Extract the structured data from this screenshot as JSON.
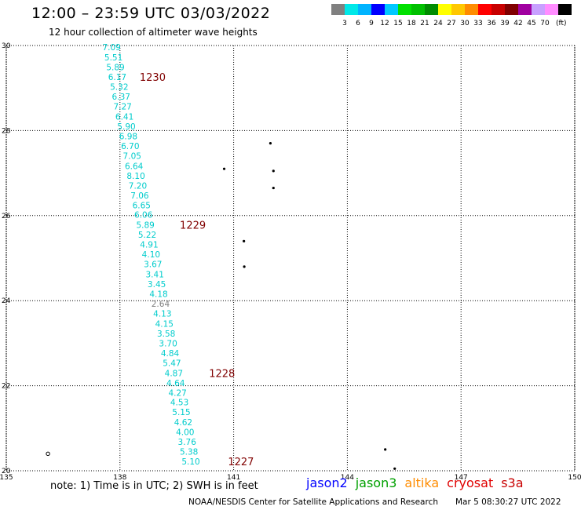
{
  "header": {
    "title": "12:00 – 23:59 UTC 03/03/2022",
    "subtitle": "12 hour collection of altimeter wave heights"
  },
  "color_scale": {
    "unit_label": "(ft)",
    "bins": [
      {
        "label": "",
        "color": "#808080"
      },
      {
        "label": "3",
        "color": "#00e8e8"
      },
      {
        "label": "6",
        "color": "#00b4ff"
      },
      {
        "label": "9",
        "color": "#0000ff"
      },
      {
        "label": "12",
        "color": "#00c8ff"
      },
      {
        "label": "15",
        "color": "#00e000"
      },
      {
        "label": "18",
        "color": "#00c000"
      },
      {
        "label": "21",
        "color": "#008c00"
      },
      {
        "label": "24",
        "color": "#ffff00"
      },
      {
        "label": "27",
        "color": "#ffc800"
      },
      {
        "label": "30",
        "color": "#ff8c00"
      },
      {
        "label": "33",
        "color": "#ff0000"
      },
      {
        "label": "36",
        "color": "#c80000"
      },
      {
        "label": "39",
        "color": "#800000"
      },
      {
        "label": "42",
        "color": "#a000a0"
      },
      {
        "label": "45",
        "color": "#c8a0ff"
      },
      {
        "label": "70",
        "color": "#ff8cff"
      },
      {
        "label": "",
        "color": "#000000"
      }
    ]
  },
  "notes": {
    "note": "note:  1) Time is in UTC;  2) SWH is in feet",
    "credit": "NOAA/NESDIS Center for Satellite Applications and Research",
    "timestamp": "Mar  5 08:30:27 UTC 2022"
  },
  "satellites": [
    {
      "name": "jason2",
      "color": "#0000ff"
    },
    {
      "name": "jason3",
      "color": "#00a000"
    },
    {
      "name": "altika",
      "color": "#ff8c00"
    },
    {
      "name": "cryosat",
      "color": "#e00000"
    },
    {
      "name": "s3a",
      "color": "#c80000"
    }
  ],
  "chart_data": {
    "type": "scatter",
    "title": "12:00 – 23:59 UTC 03/03/2022",
    "subtitle": "12 hour collection of altimeter wave heights",
    "xlim": [
      135,
      150
    ],
    "ylim": [
      20,
      30
    ],
    "xticks": [
      135,
      138,
      141,
      144,
      147,
      150
    ],
    "yticks": [
      20,
      22,
      24,
      26,
      28,
      30
    ],
    "grid": true,
    "value_color": "#00cccc",
    "low_value_color": "#808080",
    "time_color": "#800000",
    "points": [
      {
        "lon": 137.78,
        "lat": 29.96,
        "swh": "7.09"
      },
      {
        "lon": 137.83,
        "lat": 29.72,
        "swh": "5.51"
      },
      {
        "lon": 137.88,
        "lat": 29.49,
        "swh": "5.89"
      },
      {
        "lon": 137.93,
        "lat": 29.26,
        "swh": "6.17"
      },
      {
        "lon": 137.98,
        "lat": 29.03,
        "swh": "5.32"
      },
      {
        "lon": 138.03,
        "lat": 28.8,
        "swh": "6.37"
      },
      {
        "lon": 138.07,
        "lat": 28.57,
        "swh": "7.27"
      },
      {
        "lon": 138.12,
        "lat": 28.33,
        "swh": "6.41"
      },
      {
        "lon": 138.17,
        "lat": 28.1,
        "swh": "5.90"
      },
      {
        "lon": 138.22,
        "lat": 27.87,
        "swh": "6.98"
      },
      {
        "lon": 138.27,
        "lat": 27.64,
        "swh": "6.70"
      },
      {
        "lon": 138.32,
        "lat": 27.41,
        "swh": "7.05"
      },
      {
        "lon": 138.37,
        "lat": 27.17,
        "swh": "6.64"
      },
      {
        "lon": 138.42,
        "lat": 26.94,
        "swh": "8.10"
      },
      {
        "lon": 138.47,
        "lat": 26.71,
        "swh": "7.20"
      },
      {
        "lon": 138.52,
        "lat": 26.48,
        "swh": "7.06"
      },
      {
        "lon": 138.57,
        "lat": 26.25,
        "swh": "6.65"
      },
      {
        "lon": 138.62,
        "lat": 26.02,
        "swh": "6.06"
      },
      {
        "lon": 138.67,
        "lat": 25.78,
        "swh": "5.89"
      },
      {
        "lon": 138.72,
        "lat": 25.55,
        "swh": "5.22"
      },
      {
        "lon": 138.77,
        "lat": 25.32,
        "swh": "4.91"
      },
      {
        "lon": 138.82,
        "lat": 25.09,
        "swh": "4.10"
      },
      {
        "lon": 138.87,
        "lat": 24.86,
        "swh": "3.67"
      },
      {
        "lon": 138.92,
        "lat": 24.62,
        "swh": "3.41"
      },
      {
        "lon": 138.97,
        "lat": 24.39,
        "swh": "3.45"
      },
      {
        "lon": 139.02,
        "lat": 24.16,
        "swh": "4.18"
      },
      {
        "lon": 139.07,
        "lat": 23.93,
        "swh": "2.64"
      },
      {
        "lon": 139.12,
        "lat": 23.7,
        "swh": "4.13"
      },
      {
        "lon": 139.17,
        "lat": 23.46,
        "swh": "4.15"
      },
      {
        "lon": 139.22,
        "lat": 23.23,
        "swh": "3.58"
      },
      {
        "lon": 139.27,
        "lat": 23.0,
        "swh": "3.70"
      },
      {
        "lon": 139.32,
        "lat": 22.77,
        "swh": "4.84"
      },
      {
        "lon": 139.37,
        "lat": 22.54,
        "swh": "5.47"
      },
      {
        "lon": 139.42,
        "lat": 22.3,
        "swh": "4.87"
      },
      {
        "lon": 139.47,
        "lat": 22.07,
        "swh": "4.64"
      },
      {
        "lon": 139.52,
        "lat": 21.84,
        "swh": "4.27"
      },
      {
        "lon": 139.57,
        "lat": 21.61,
        "swh": "4.53"
      },
      {
        "lon": 139.62,
        "lat": 21.38,
        "swh": "5.15"
      },
      {
        "lon": 139.67,
        "lat": 21.14,
        "swh": "4.62"
      },
      {
        "lon": 139.72,
        "lat": 20.91,
        "swh": "4.00"
      },
      {
        "lon": 139.77,
        "lat": 20.68,
        "swh": "3.76"
      },
      {
        "lon": 139.82,
        "lat": 20.45,
        "swh": "5.38"
      },
      {
        "lon": 139.87,
        "lat": 20.22,
        "swh": "5.10"
      }
    ],
    "time_labels": [
      {
        "lon": 138.52,
        "lat": 29.26,
        "label": "1230"
      },
      {
        "lon": 139.58,
        "lat": 25.78,
        "label": "1229"
      },
      {
        "lon": 140.35,
        "lat": 22.3,
        "label": "1228"
      },
      {
        "lon": 140.85,
        "lat": 20.22,
        "label": "1227"
      }
    ]
  }
}
